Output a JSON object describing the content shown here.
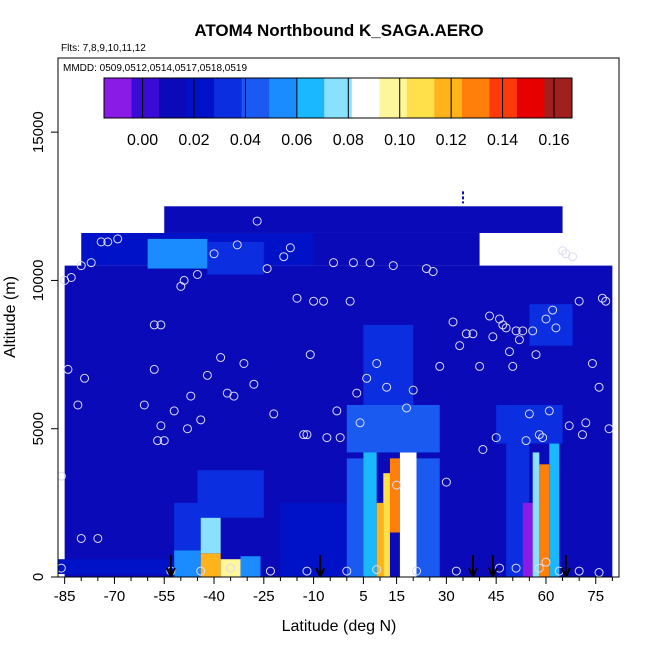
{
  "title": "ATOM4 Northbound K_SAGA.AERO",
  "flights_note": "Flts: 7,8,9,10,11,12",
  "mmdd_note": "MMDD: 0509,0512,0514,0517,0518,0519",
  "chart_data": {
    "type": "heatmap",
    "title": "ATOM4 Northbound K_SAGA.AERO",
    "xlabel": "Latitude (deg N)",
    "ylabel": "Altitude (m)",
    "xlim": [
      -87,
      82
    ],
    "ylim": [
      0,
      17500
    ],
    "x_ticks": [
      -85,
      -70,
      -55,
      -40,
      -25,
      -10,
      5,
      15,
      30,
      45,
      60,
      75
    ],
    "x_minor_ticks": [
      -80,
      -75,
      -65,
      -60,
      -50,
      -45,
      -35,
      -30,
      -20,
      -15,
      -5,
      0,
      10,
      20,
      25,
      35,
      40,
      50,
      55,
      65,
      70,
      80
    ],
    "y_ticks": [
      0,
      5000,
      10000,
      15000
    ],
    "colorbar": {
      "min": -0.015,
      "max": 0.167,
      "ticks": [
        0.0,
        0.02,
        0.04,
        0.06,
        0.08,
        0.1,
        0.12,
        0.14,
        0.16
      ],
      "tick_labels": [
        "0.00",
        "0.02",
        "0.04",
        "0.06",
        "0.08",
        "0.10",
        "0.12",
        "0.14",
        "0.16"
      ],
      "colors": [
        "#8a1ae6",
        "#3a0ad6",
        "#0a0ab8",
        "#0012c8",
        "#0a2ee0",
        "#1a5af0",
        "#1a8cff",
        "#1ab8ff",
        "#8ae0ff",
        "#ffffff",
        "#fff59a",
        "#ffe04a",
        "#ffb31a",
        "#ff7f0a",
        "#ff3a0a",
        "#e60000",
        "#a02020"
      ]
    },
    "background_value": 0.015,
    "regions": [
      {
        "lat": [
          -85,
          80
        ],
        "alt": [
          0,
          10500
        ],
        "value": 0.016
      },
      {
        "lat": [
          -80,
          -8
        ],
        "alt": [
          10500,
          11600
        ],
        "value": 0.02
      },
      {
        "lat": [
          -55,
          65
        ],
        "alt": [
          11600,
          12500
        ],
        "value": 0.01
      },
      {
        "lat": [
          -10,
          40
        ],
        "alt": [
          10500,
          11600
        ],
        "value": 0.012
      },
      {
        "lat": [
          -60,
          -42
        ],
        "alt": [
          10400,
          11400
        ],
        "value": 0.05
      },
      {
        "lat": [
          -42,
          -25
        ],
        "alt": [
          10200,
          11300
        ],
        "value": 0.035
      },
      {
        "lat": [
          -90,
          -52
        ],
        "alt": [
          100,
          600
        ],
        "value": 0.02
      },
      {
        "lat": [
          -52,
          -44
        ],
        "alt": [
          0,
          900
        ],
        "value": 0.05
      },
      {
        "lat": [
          -52,
          -44
        ],
        "alt": [
          900,
          2500
        ],
        "value": 0.035
      },
      {
        "lat": [
          -44,
          -38
        ],
        "alt": [
          0,
          800
        ],
        "value": 0.115
      },
      {
        "lat": [
          -44,
          -38
        ],
        "alt": [
          800,
          2000
        ],
        "value": 0.075
      },
      {
        "lat": [
          -38,
          -32
        ],
        "alt": [
          0,
          600
        ],
        "value": 0.1
      },
      {
        "lat": [
          -32,
          -26
        ],
        "alt": [
          0,
          700
        ],
        "value": 0.055
      },
      {
        "lat": [
          -45,
          -25
        ],
        "alt": [
          2000,
          3600
        ],
        "value": 0.03
      },
      {
        "lat": [
          -20,
          5
        ],
        "alt": [
          0,
          2500
        ],
        "value": 0.02
      },
      {
        "lat": [
          0,
          5
        ],
        "alt": [
          0,
          4000
        ],
        "value": 0.045
      },
      {
        "lat": [
          5,
          9
        ],
        "alt": [
          0,
          4500
        ],
        "value": 0.065
      },
      {
        "lat": [
          9,
          11
        ],
        "alt": [
          0,
          2500
        ],
        "value": 0.12
      },
      {
        "lat": [
          11,
          13
        ],
        "alt": [
          0,
          3500
        ],
        "value": 0.11
      },
      {
        "lat": [
          13,
          16
        ],
        "alt": [
          1500,
          4000
        ],
        "value": 0.125
      },
      {
        "lat": [
          16,
          21
        ],
        "alt": [
          0,
          4200
        ],
        "value": 0.085
      },
      {
        "lat": [
          21,
          28
        ],
        "alt": [
          0,
          4000
        ],
        "value": 0.045
      },
      {
        "lat": [
          0,
          28
        ],
        "alt": [
          4200,
          5800
        ],
        "value": 0.04
      },
      {
        "lat": [
          5,
          20
        ],
        "alt": [
          5800,
          8500
        ],
        "value": 0.03
      },
      {
        "lat": [
          48,
          55
        ],
        "alt": [
          0,
          4500
        ],
        "value": 0.035
      },
      {
        "lat": [
          53,
          56
        ],
        "alt": [
          0,
          2500
        ],
        "value": -0.01
      },
      {
        "lat": [
          56,
          58
        ],
        "alt": [
          0,
          4200
        ],
        "value": 0.075
      },
      {
        "lat": [
          58,
          61
        ],
        "alt": [
          0,
          3800
        ],
        "value": 0.13
      },
      {
        "lat": [
          61,
          64
        ],
        "alt": [
          0,
          4500
        ],
        "value": 0.06
      },
      {
        "lat": [
          45,
          65
        ],
        "alt": [
          4500,
          5800
        ],
        "value": 0.035
      },
      {
        "lat": [
          55,
          68
        ],
        "alt": [
          7800,
          9200
        ],
        "value": 0.035
      }
    ],
    "samples": [
      {
        "lat": -85,
        "alt": 10000
      },
      {
        "lat": -83,
        "alt": 10100
      },
      {
        "lat": -84,
        "alt": 7000
      },
      {
        "lat": -81,
        "alt": 5800
      },
      {
        "lat": -79,
        "alt": 6700
      },
      {
        "lat": -80,
        "alt": 10500
      },
      {
        "lat": -77,
        "alt": 10600
      },
      {
        "lat": -86,
        "alt": 3400
      },
      {
        "lat": -75,
        "alt": 1300
      },
      {
        "lat": -74,
        "alt": 11300
      },
      {
        "lat": -72,
        "alt": 11300
      },
      {
        "lat": -69,
        "alt": 11400
      },
      {
        "lat": -61,
        "alt": 5800
      },
      {
        "lat": -58,
        "alt": 8500
      },
      {
        "lat": -58,
        "alt": 7000
      },
      {
        "lat": -56,
        "alt": 8500
      },
      {
        "lat": -57,
        "alt": 4600
      },
      {
        "lat": -56,
        "alt": 5100
      },
      {
        "lat": -55,
        "alt": 4600
      },
      {
        "lat": -52,
        "alt": 5600
      },
      {
        "lat": -50,
        "alt": 9800
      },
      {
        "lat": -49,
        "alt": 10000
      },
      {
        "lat": -48,
        "alt": 5000
      },
      {
        "lat": -47,
        "alt": 6100
      },
      {
        "lat": -45,
        "alt": 10200
      },
      {
        "lat": -44,
        "alt": 5300
      },
      {
        "lat": -42,
        "alt": 6800
      },
      {
        "lat": -40,
        "alt": 10900
      },
      {
        "lat": -38,
        "alt": 7400
      },
      {
        "lat": -36,
        "alt": 6200
      },
      {
        "lat": -34,
        "alt": 6100
      },
      {
        "lat": -33,
        "alt": 11200
      },
      {
        "lat": -31,
        "alt": 7200
      },
      {
        "lat": -28,
        "alt": 6500
      },
      {
        "lat": -27,
        "alt": 12000
      },
      {
        "lat": -24,
        "alt": 10400
      },
      {
        "lat": -22,
        "alt": 5500
      },
      {
        "lat": -19,
        "alt": 10800
      },
      {
        "lat": -17,
        "alt": 11100
      },
      {
        "lat": -15,
        "alt": 9400
      },
      {
        "lat": -13,
        "alt": 4800
      },
      {
        "lat": -12,
        "alt": 4800
      },
      {
        "lat": -11,
        "alt": 7500
      },
      {
        "lat": -10,
        "alt": 9300
      },
      {
        "lat": -7,
        "alt": 9300
      },
      {
        "lat": -6,
        "alt": 4700
      },
      {
        "lat": -4,
        "alt": 10600
      },
      {
        "lat": -3,
        "alt": 5600
      },
      {
        "lat": -2,
        "alt": 4700
      },
      {
        "lat": 1,
        "alt": 9300
      },
      {
        "lat": 2,
        "alt": 10600
      },
      {
        "lat": 3,
        "alt": 6200
      },
      {
        "lat": 4,
        "alt": 5200
      },
      {
        "lat": 6,
        "alt": 6700
      },
      {
        "lat": 7,
        "alt": 10600
      },
      {
        "lat": 9,
        "alt": 7200
      },
      {
        "lat": 12,
        "alt": 6400
      },
      {
        "lat": 14,
        "alt": 10500
      },
      {
        "lat": 15,
        "alt": 3100
      },
      {
        "lat": 18,
        "alt": 5700
      },
      {
        "lat": 20,
        "alt": 6300
      },
      {
        "lat": 24,
        "alt": 10400
      },
      {
        "lat": 26,
        "alt": 10300
      },
      {
        "lat": 28,
        "alt": 7100
      },
      {
        "lat": 30,
        "alt": 3200
      },
      {
        "lat": 32,
        "alt": 8600
      },
      {
        "lat": 34,
        "alt": 7800
      },
      {
        "lat": 36,
        "alt": 8200
      },
      {
        "lat": 38,
        "alt": 8200
      },
      {
        "lat": 40,
        "alt": 7100
      },
      {
        "lat": 41,
        "alt": 4300
      },
      {
        "lat": 43,
        "alt": 8800
      },
      {
        "lat": 44,
        "alt": 8100
      },
      {
        "lat": 45,
        "alt": 4700
      },
      {
        "lat": 46,
        "alt": 8700
      },
      {
        "lat": 47,
        "alt": 8500
      },
      {
        "lat": 48,
        "alt": 8400
      },
      {
        "lat": 49,
        "alt": 7600
      },
      {
        "lat": 50,
        "alt": 7100
      },
      {
        "lat": 51,
        "alt": 8300
      },
      {
        "lat": 52,
        "alt": 8000
      },
      {
        "lat": 53,
        "alt": 8300
      },
      {
        "lat": 54,
        "alt": 4600
      },
      {
        "lat": 55,
        "alt": 5500
      },
      {
        "lat": 56,
        "alt": 8300
      },
      {
        "lat": 57,
        "alt": 7500
      },
      {
        "lat": 58,
        "alt": 4800
      },
      {
        "lat": 59,
        "alt": 4700
      },
      {
        "lat": 60,
        "alt": 8700
      },
      {
        "lat": 61,
        "alt": 5600
      },
      {
        "lat": 62,
        "alt": 9000
      },
      {
        "lat": 63,
        "alt": 8400
      },
      {
        "lat": 65,
        "alt": 11000
      },
      {
        "lat": 66,
        "alt": 10900
      },
      {
        "lat": 67,
        "alt": 5100
      },
      {
        "lat": 68,
        "alt": 10800
      },
      {
        "lat": 70,
        "alt": 9300
      },
      {
        "lat": 71,
        "alt": 4800
      },
      {
        "lat": 72,
        "alt": 5200
      },
      {
        "lat": 74,
        "alt": 7200
      },
      {
        "lat": 76,
        "alt": 6400
      },
      {
        "lat": 77,
        "alt": 9400
      },
      {
        "lat": 78,
        "alt": 9300
      },
      {
        "lat": 79,
        "alt": 5000
      },
      {
        "lat": -53,
        "alt": 200
      },
      {
        "lat": -44,
        "alt": 200
      },
      {
        "lat": -35,
        "alt": 300
      },
      {
        "lat": -23,
        "alt": 200
      },
      {
        "lat": -12,
        "alt": 200
      },
      {
        "lat": 0,
        "alt": 200
      },
      {
        "lat": 9,
        "alt": 250
      },
      {
        "lat": 21,
        "alt": 200
      },
      {
        "lat": 33,
        "alt": 200
      },
      {
        "lat": 46,
        "alt": 300
      },
      {
        "lat": 51,
        "alt": 300
      },
      {
        "lat": 58,
        "alt": 300
      },
      {
        "lat": 60,
        "alt": 500
      },
      {
        "lat": 64,
        "alt": 200
      },
      {
        "lat": 70,
        "alt": 200
      },
      {
        "lat": 76,
        "alt": 150
      },
      {
        "lat": -80,
        "alt": 1300
      },
      {
        "lat": -86,
        "alt": 300
      }
    ],
    "arrows": [
      -53,
      -8,
      38,
      44,
      66
    ],
    "top_marker": {
      "lat": 35,
      "alt": 12800
    }
  }
}
